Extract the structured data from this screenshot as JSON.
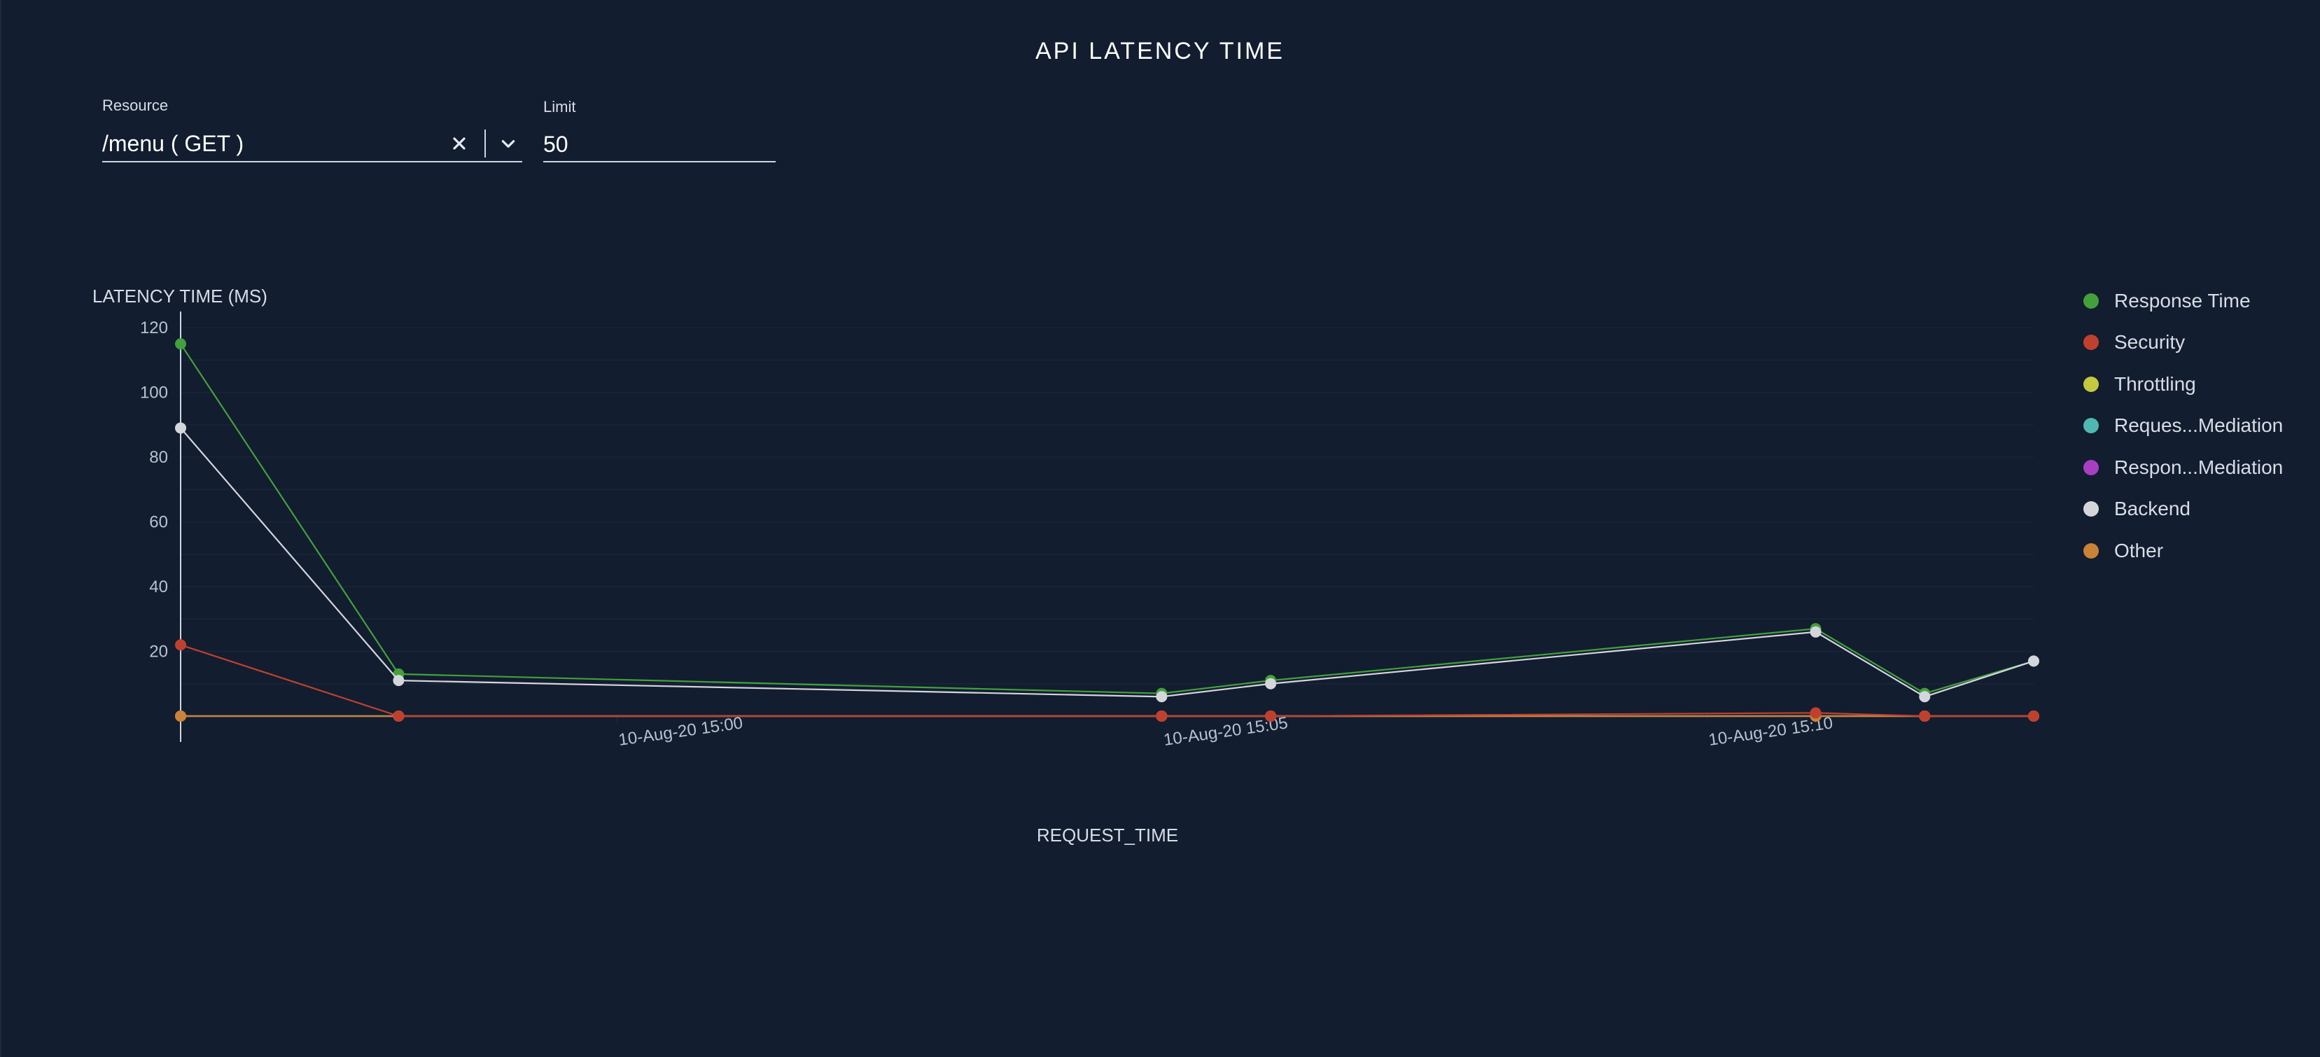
{
  "page": {
    "title": "API LATENCY TIME"
  },
  "filters": {
    "resource": {
      "label": "Resource",
      "value": "/menu ( GET )"
    },
    "limit": {
      "label": "Limit",
      "value": "50"
    }
  },
  "colors": {
    "background": "#121d2f",
    "axis": "#cfd6df",
    "grid": "#1a2638",
    "tick_text": "#b9c2cf"
  },
  "icons": {
    "clear": "close-icon",
    "dropdown": "chevron-down-icon"
  },
  "chart_data": {
    "type": "line",
    "title": "",
    "ylabel": "LATENCY TIME (MS)",
    "xlabel": "REQUEST_TIME",
    "ylim": [
      -8,
      125
    ],
    "yticks": [
      20,
      40,
      60,
      80,
      100,
      120
    ],
    "x": [
      "2020-08-10 14:56:00",
      "2020-08-10 14:58:00",
      "2020-08-10 15:05:00",
      "2020-08-10 15:06:00",
      "2020-08-10 15:11:00",
      "2020-08-10 15:12:00",
      "2020-08-10 15:13:00"
    ],
    "xlim": [
      "2020-08-10 14:56:00",
      "2020-08-10 15:13:00"
    ],
    "xticks": [
      {
        "label": "10-Aug-20 15:00",
        "x": "2020-08-10 15:00:00"
      },
      {
        "label": "10-Aug-20 15:05",
        "x": "2020-08-10 15:05:00"
      },
      {
        "label": "10-Aug-20 15:10",
        "x": "2020-08-10 15:10:00"
      }
    ],
    "legend_position": "right",
    "grid": true,
    "series": [
      {
        "name": "Response Time",
        "color": "#43a03c",
        "values": [
          115,
          13,
          7,
          11,
          27,
          7,
          17
        ]
      },
      {
        "name": "Security",
        "color": "#c0402e",
        "values": [
          22,
          0,
          0,
          0,
          1,
          0,
          0
        ]
      },
      {
        "name": "Throttling",
        "color": "#c5c93f",
        "values": [
          0,
          0,
          0,
          0,
          0,
          0,
          0
        ]
      },
      {
        "name": "Reques...Mediation",
        "color": "#4fb8b2",
        "values": [
          0,
          0,
          0,
          0,
          0,
          0,
          0
        ]
      },
      {
        "name": "Respon...Mediation",
        "color": "#a83fc2",
        "values": [
          0,
          0,
          0,
          0,
          0,
          0,
          0
        ]
      },
      {
        "name": "Backend",
        "color": "#d5d5dc",
        "values": [
          89,
          11,
          6,
          10,
          26,
          6,
          17
        ]
      },
      {
        "name": "Other",
        "color": "#c98236",
        "values": [
          0,
          0,
          0,
          0,
          0,
          0,
          0
        ]
      }
    ]
  }
}
